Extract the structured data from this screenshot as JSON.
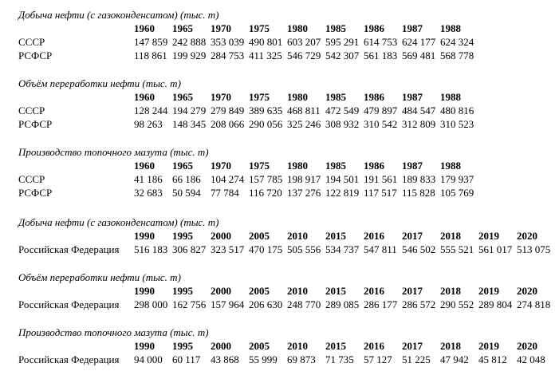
{
  "page": {
    "background_color": "#ffffff",
    "text_color": "#000000",
    "unit_note": "(тыс. т)"
  },
  "tables": [
    {
      "title": "Добыча нефти (с газоконденсатом) (тыс. т)",
      "years": [
        "1960",
        "1965",
        "1970",
        "1975",
        "1980",
        "1985",
        "1986",
        "1987",
        "1988"
      ],
      "rows": [
        {
          "label": "СССР",
          "values": [
            "147 859",
            "242 888",
            "353 039",
            "490 801",
            "603 207",
            "595 291",
            "614 753",
            "624 177",
            "624 324"
          ]
        },
        {
          "label": "РСФСР",
          "values": [
            "118 861",
            "199 929",
            "284 753",
            "411 325",
            "546 729",
            "542 307",
            "561 183",
            "569 481",
            "568 778"
          ]
        }
      ],
      "extra_gap_before": false
    },
    {
      "title": "Объём переработки нефти (тыс. т)",
      "years": [
        "1960",
        "1965",
        "1970",
        "1975",
        "1980",
        "1985",
        "1986",
        "1987",
        "1988"
      ],
      "rows": [
        {
          "label": "СССР",
          "values": [
            "128 244",
            "194 279",
            "279 849",
            "389 635",
            "468 811",
            "472 549",
            "479 897",
            "484 547",
            "480 816"
          ]
        },
        {
          "label": "РСФСР",
          "values": [
            "98 263",
            "148 345",
            "208 066",
            "290 056",
            "325 246",
            "308 932",
            "310 542",
            "312 809",
            "310 523"
          ]
        }
      ],
      "extra_gap_before": false
    },
    {
      "title": "Производство топочного мазута (тыс. т)",
      "years": [
        "1960",
        "1965",
        "1970",
        "1975",
        "1980",
        "1985",
        "1986",
        "1987",
        "1988"
      ],
      "rows": [
        {
          "label": "СССР",
          "values": [
            "41 186",
            "66 186",
            "104 274",
            "157 785",
            "198 917",
            "194 501",
            "191 561",
            "189 833",
            "179 937"
          ]
        },
        {
          "label": "РСФСР",
          "values": [
            "32 683",
            "50 594",
            "77 784",
            "116 720",
            "137 276",
            "122 819",
            "117 517",
            "115 828",
            "105 769"
          ]
        }
      ],
      "extra_gap_before": false
    },
    {
      "title": "Добыча нефти (с газоконденсатом) (тыс. т)",
      "years": [
        "1990",
        "1995",
        "2000",
        "2005",
        "2010",
        "2015",
        "2016",
        "2017",
        "2018",
        "2019",
        "2020"
      ],
      "rows": [
        {
          "label": "Российская Федерация",
          "values": [
            "516 183",
            "306 827",
            "323 517",
            "470 175",
            "505 556",
            "534 737",
            "547 811",
            "546 502",
            "555 521",
            "561 017",
            "513 075"
          ]
        }
      ],
      "extra_gap_before": true
    },
    {
      "title": "Объём переработки нефти (тыс. т)",
      "years": [
        "1990",
        "1995",
        "2000",
        "2005",
        "2010",
        "2015",
        "2016",
        "2017",
        "2018",
        "2019",
        "2020"
      ],
      "rows": [
        {
          "label": "Российская Федерация",
          "values": [
            "298 000",
            "162 756",
            "157 964",
            "206 630",
            "248 770",
            "289 085",
            "286 177",
            "286 572",
            "290 552",
            "289 804",
            "274 818"
          ]
        }
      ],
      "extra_gap_before": false
    },
    {
      "title": "Производство топочного мазута (тыс. т)",
      "years": [
        "1990",
        "1995",
        "2000",
        "2005",
        "2010",
        "2015",
        "2016",
        "2017",
        "2018",
        "2019",
        "2020"
      ],
      "rows": [
        {
          "label": "Российская Федерация",
          "values": [
            "94 000",
            "60 117",
            "43 868",
            "55 999",
            "69 873",
            "71 735",
            "57 127",
            "51 225",
            "47 942",
            "45 812",
            "42 048"
          ]
        }
      ],
      "extra_gap_before": false
    }
  ]
}
